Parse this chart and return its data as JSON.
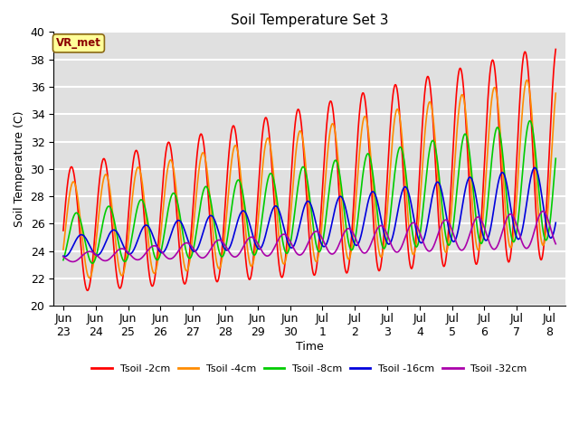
{
  "title": "Soil Temperature Set 3",
  "xlabel": "Time",
  "ylabel": "Soil Temperature (C)",
  "ylim": [
    20,
    40
  ],
  "annotation": "VR_met",
  "annotation_color": "#8B0000",
  "annotation_bg": "#FFFF99",
  "annotation_edge": "#8B6914",
  "bg_color": "#E0E0E0",
  "grid_color": "#FFFFFF",
  "series": [
    {
      "label": "Tsoil -2cm",
      "color": "#FF0000"
    },
    {
      "label": "Tsoil -4cm",
      "color": "#FF8C00"
    },
    {
      "label": "Tsoil -8cm",
      "color": "#00CC00"
    },
    {
      "label": "Tsoil -16cm",
      "color": "#0000DD"
    },
    {
      "label": "Tsoil -32cm",
      "color": "#AA00AA"
    }
  ],
  "xtick_labels": [
    "Jun\n23",
    "Jun\n24",
    "Jun\n25",
    "Jun\n26",
    "Jun\n27",
    "Jun\n28",
    "Jun\n29",
    "Jun\n30",
    "Jul\n1",
    "Jul\n2",
    "Jul\n3",
    "Jul\n4",
    "Jul\n5",
    "Jul\n6",
    "Jul\n7",
    "Jul\n8"
  ],
  "xtick_positions": [
    0,
    1,
    2,
    3,
    4,
    5,
    6,
    7,
    8,
    9,
    10,
    11,
    12,
    13,
    14,
    15
  ]
}
